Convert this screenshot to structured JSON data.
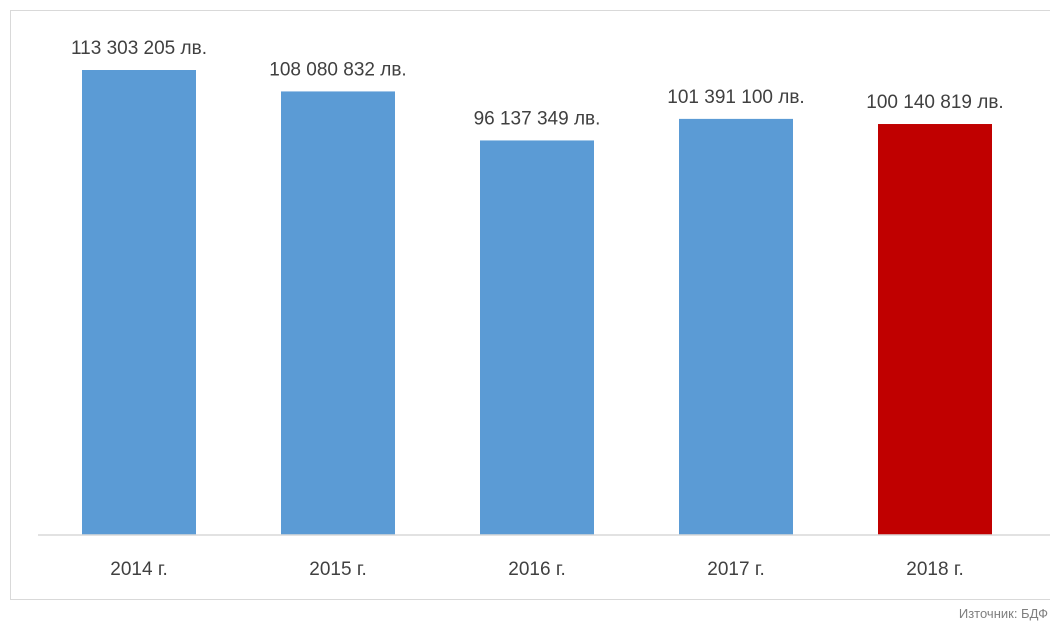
{
  "chart_data": {
    "type": "bar",
    "categories": [
      "2014 г.",
      "2015 г.",
      "2016 г.",
      "2017 г.",
      "2018 г."
    ],
    "values": [
      113303205,
      108080832,
      96137349,
      101391100,
      100140819
    ],
    "data_labels": [
      "113 303 205 лв.",
      "108 080 832 лв.",
      "96 137 349 лв.",
      "101 391 100 лв.",
      "100 140 819 лв."
    ],
    "bar_colors": [
      "#5b9bd5",
      "#5b9bd5",
      "#5b9bd5",
      "#5b9bd5",
      "#c00000"
    ],
    "title": "",
    "xlabel": "",
    "ylabel": "",
    "ylim": [
      0,
      120000000
    ],
    "grid": false,
    "legend": "none"
  },
  "source": "Източник: БДФ"
}
